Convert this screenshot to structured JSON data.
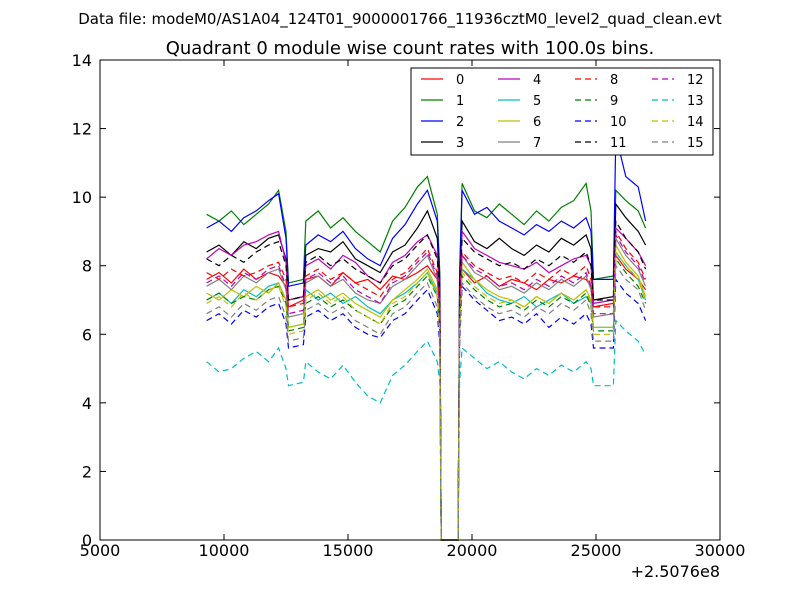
{
  "figure": {
    "suptitle": "Data file: modeM0/AS1A04_124T01_9000001766_11936cztM0_level2_quad_clean.evt"
  },
  "chart_data": {
    "type": "line",
    "title": "Quadrant 0 module wise count rates with 100.0s bins.",
    "xlabel": "",
    "ylabel": "",
    "x_offset_label": "+2.5076e8",
    "xlim": [
      5000,
      30000
    ],
    "ylim": [
      0,
      14
    ],
    "x_tick_labels": [
      "5000",
      "10000",
      "15000",
      "20000",
      "25000",
      "30000"
    ],
    "y_tick_labels": [
      "0",
      "2",
      "4",
      "6",
      "8",
      "10",
      "12",
      "14"
    ],
    "grid": false,
    "legend_position": "top-right",
    "legend_columns": 4,
    "gaps": [
      [
        12650,
        13200
      ],
      [
        18700,
        19500
      ],
      [
        24850,
        25700
      ]
    ],
    "x": [
      9300,
      9800,
      10300,
      10800,
      11300,
      11800,
      12200,
      12500,
      12600,
      13200,
      13300,
      13800,
      14300,
      14800,
      15300,
      15800,
      16300,
      16800,
      17300,
      17800,
      18200,
      18600,
      18700,
      19500,
      19600,
      20100,
      20600,
      21100,
      21600,
      22100,
      22600,
      23100,
      23600,
      24100,
      24600,
      24800,
      24900,
      25700,
      25800,
      26200,
      26700,
      27000
    ],
    "series": [
      {
        "name": "0",
        "color": "#ff0000",
        "dash": "solid",
        "values": [
          7.6,
          7.8,
          7.5,
          7.9,
          7.6,
          7.8,
          7.7,
          7.4,
          6.8,
          7.0,
          7.6,
          7.7,
          7.4,
          7.8,
          7.5,
          7.6,
          7.3,
          7.7,
          7.6,
          7.8,
          8.0,
          7.6,
          6.8,
          6.8,
          7.9,
          7.5,
          7.7,
          7.4,
          7.6,
          7.5,
          7.3,
          7.6,
          7.5,
          7.7,
          7.6,
          7.4,
          6.8,
          6.9,
          8.3,
          7.9,
          7.6,
          7.3
        ]
      },
      {
        "name": "1",
        "color": "#008000",
        "dash": "solid",
        "values": [
          9.5,
          9.3,
          9.6,
          9.2,
          9.5,
          9.8,
          10.2,
          9.0,
          7.5,
          7.6,
          9.3,
          9.6,
          9.1,
          9.4,
          9.0,
          8.7,
          8.4,
          9.3,
          9.7,
          10.3,
          10.6,
          9.5,
          7.8,
          7.8,
          10.4,
          9.6,
          9.4,
          9.8,
          9.5,
          9.2,
          9.6,
          9.3,
          9.7,
          9.9,
          10.4,
          9.6,
          7.6,
          7.7,
          10.2,
          9.9,
          9.6,
          9.1
        ]
      },
      {
        "name": "2",
        "color": "#0000ff",
        "dash": "solid",
        "values": [
          9.1,
          9.3,
          9.0,
          9.4,
          9.6,
          9.9,
          10.1,
          8.8,
          7.4,
          7.5,
          8.6,
          8.9,
          8.7,
          9.0,
          8.5,
          8.2,
          8.0,
          8.8,
          9.2,
          9.8,
          10.2,
          9.3,
          7.6,
          7.6,
          10.2,
          9.5,
          9.7,
          9.3,
          9.1,
          8.9,
          9.2,
          9.0,
          9.3,
          9.1,
          9.4,
          9.0,
          7.6,
          7.6,
          11.8,
          10.6,
          10.3,
          9.3
        ]
      },
      {
        "name": "3",
        "color": "#000000",
        "dash": "solid",
        "values": [
          8.4,
          8.6,
          8.3,
          8.7,
          8.5,
          8.8,
          8.9,
          8.2,
          7.0,
          7.1,
          8.3,
          8.5,
          8.4,
          8.7,
          8.2,
          8.0,
          7.8,
          8.4,
          8.6,
          9.1,
          9.6,
          8.8,
          7.2,
          7.2,
          9.3,
          8.7,
          8.5,
          8.8,
          8.5,
          8.3,
          8.6,
          8.4,
          8.8,
          8.6,
          8.9,
          8.5,
          7.0,
          7.1,
          9.8,
          9.4,
          9.0,
          8.6
        ]
      },
      {
        "name": "4",
        "color": "#bf00bf",
        "dash": "solid",
        "values": [
          8.2,
          8.5,
          8.3,
          8.6,
          8.7,
          8.9,
          9.0,
          8.1,
          7.0,
          7.1,
          8.0,
          8.2,
          7.9,
          8.3,
          8.1,
          7.7,
          7.5,
          8.1,
          8.3,
          8.7,
          8.9,
          8.3,
          7.0,
          7.0,
          9.0,
          8.5,
          8.3,
          8.1,
          8.0,
          7.9,
          8.1,
          7.8,
          8.0,
          8.2,
          8.3,
          8.0,
          6.9,
          7.0,
          9.1,
          8.8,
          8.4,
          8.0
        ]
      },
      {
        "name": "5",
        "color": "#00bfbf",
        "dash": "solid",
        "values": [
          7.0,
          7.2,
          6.9,
          7.3,
          7.1,
          7.4,
          7.5,
          7.0,
          6.2,
          6.3,
          7.3,
          7.0,
          7.2,
          6.9,
          7.1,
          6.8,
          6.6,
          7.0,
          7.2,
          7.5,
          7.8,
          7.2,
          6.3,
          6.3,
          7.9,
          7.6,
          7.2,
          7.0,
          6.9,
          7.1,
          6.8,
          7.0,
          7.2,
          6.9,
          7.1,
          6.9,
          6.2,
          6.2,
          8.4,
          8.0,
          7.6,
          7.0
        ]
      },
      {
        "name": "6",
        "color": "#bfbf00",
        "dash": "solid",
        "values": [
          7.2,
          7.0,
          7.3,
          7.1,
          7.4,
          7.2,
          7.5,
          7.0,
          6.2,
          6.3,
          7.1,
          7.3,
          7.0,
          7.2,
          6.9,
          6.7,
          6.5,
          7.0,
          7.3,
          7.6,
          7.9,
          7.3,
          6.3,
          6.3,
          8.1,
          7.6,
          7.3,
          7.1,
          7.0,
          6.8,
          7.1,
          6.9,
          7.2,
          7.0,
          7.3,
          7.0,
          6.2,
          6.2,
          8.6,
          8.1,
          7.7,
          7.1
        ]
      },
      {
        "name": "7",
        "color": "#808080",
        "dash": "solid",
        "values": [
          7.4,
          7.6,
          7.3,
          7.7,
          7.5,
          7.8,
          7.9,
          7.3,
          6.5,
          6.6,
          7.5,
          7.7,
          7.4,
          7.6,
          7.2,
          7.0,
          6.9,
          7.4,
          7.6,
          8.0,
          8.3,
          7.6,
          6.6,
          6.6,
          8.3,
          7.8,
          7.6,
          7.3,
          7.4,
          7.2,
          7.5,
          7.3,
          7.6,
          7.4,
          7.7,
          7.3,
          6.5,
          6.6,
          8.8,
          8.3,
          7.9,
          7.4
        ]
      },
      {
        "name": "8",
        "color": "#ff0000",
        "dash": "dashed",
        "values": [
          7.8,
          7.6,
          7.9,
          7.7,
          7.8,
          8.0,
          8.1,
          7.6,
          6.8,
          6.9,
          7.7,
          7.9,
          7.6,
          7.8,
          7.5,
          7.3,
          7.1,
          7.6,
          7.8,
          8.2,
          8.5,
          7.8,
          6.8,
          6.8,
          8.4,
          8.0,
          7.8,
          7.6,
          7.7,
          7.5,
          7.8,
          7.6,
          7.9,
          7.7,
          8.0,
          7.6,
          6.8,
          6.8,
          9.0,
          8.5,
          8.1,
          7.6
        ]
      },
      {
        "name": "9",
        "color": "#008000",
        "dash": "dashed",
        "values": [
          7.0,
          7.2,
          6.9,
          7.1,
          7.0,
          7.3,
          7.4,
          6.9,
          6.1,
          6.2,
          6.9,
          7.1,
          6.8,
          7.0,
          6.7,
          6.5,
          6.3,
          6.8,
          7.0,
          7.4,
          7.7,
          7.1,
          6.2,
          6.2,
          7.7,
          7.3,
          7.0,
          6.8,
          6.9,
          6.7,
          7.0,
          6.8,
          7.1,
          6.9,
          7.2,
          6.8,
          6.1,
          6.1,
          8.2,
          7.8,
          7.4,
          6.9
        ]
      },
      {
        "name": "10",
        "color": "#0000ff",
        "dash": "dashed",
        "values": [
          6.4,
          6.6,
          6.3,
          6.7,
          6.5,
          6.8,
          6.9,
          6.3,
          5.6,
          5.7,
          6.5,
          6.7,
          6.4,
          6.6,
          6.2,
          6.0,
          5.9,
          6.4,
          6.6,
          7.0,
          7.3,
          6.6,
          5.7,
          5.7,
          7.4,
          7.0,
          6.7,
          6.4,
          6.5,
          6.3,
          6.6,
          6.2,
          6.5,
          6.3,
          6.6,
          6.3,
          5.6,
          5.6,
          7.6,
          7.2,
          6.9,
          6.4
        ]
      },
      {
        "name": "11",
        "color": "#000000",
        "dash": "dashed",
        "values": [
          8.2,
          8.0,
          8.3,
          8.1,
          8.4,
          8.6,
          8.7,
          8.0,
          7.0,
          7.1,
          8.1,
          8.3,
          8.0,
          8.2,
          7.9,
          7.7,
          7.5,
          8.0,
          8.2,
          8.6,
          8.9,
          8.2,
          7.1,
          7.1,
          8.8,
          8.4,
          8.2,
          8.0,
          8.1,
          7.9,
          8.2,
          8.0,
          8.3,
          8.1,
          8.4,
          8.0,
          7.0,
          7.0,
          9.3,
          8.8,
          8.4,
          7.9
        ]
      },
      {
        "name": "12",
        "color": "#bf00bf",
        "dash": "dashed",
        "values": [
          7.5,
          7.7,
          7.4,
          7.8,
          7.6,
          7.9,
          8.0,
          7.4,
          6.6,
          6.7,
          7.6,
          7.8,
          7.5,
          7.7,
          7.3,
          7.1,
          6.9,
          7.5,
          7.7,
          8.1,
          8.4,
          7.7,
          6.7,
          6.7,
          8.3,
          7.9,
          7.7,
          7.4,
          7.5,
          7.3,
          7.6,
          7.4,
          7.7,
          7.5,
          7.8,
          7.4,
          6.6,
          6.6,
          8.9,
          8.4,
          8.0,
          7.5
        ]
      },
      {
        "name": "13",
        "color": "#00bfbf",
        "dash": "dashed",
        "values": [
          5.2,
          4.9,
          5.0,
          5.3,
          5.5,
          5.2,
          5.6,
          5.0,
          4.5,
          4.6,
          5.2,
          4.9,
          4.7,
          5.1,
          4.6,
          4.2,
          4.0,
          4.8,
          5.1,
          5.5,
          5.8,
          5.2,
          4.6,
          4.6,
          5.6,
          5.3,
          5.0,
          5.2,
          4.9,
          4.7,
          5.0,
          4.8,
          5.1,
          4.9,
          5.2,
          5.0,
          4.5,
          4.5,
          6.4,
          6.1,
          5.8,
          5.4
        ]
      },
      {
        "name": "14",
        "color": "#bfbf00",
        "dash": "dashed",
        "values": [
          6.9,
          7.1,
          6.8,
          7.2,
          7.0,
          7.3,
          7.4,
          6.8,
          6.0,
          6.1,
          7.0,
          7.2,
          6.9,
          7.1,
          6.7,
          6.5,
          6.3,
          6.9,
          7.1,
          7.5,
          7.8,
          7.1,
          6.1,
          6.1,
          7.8,
          7.4,
          7.1,
          6.9,
          7.0,
          6.8,
          7.1,
          6.9,
          7.2,
          7.0,
          7.3,
          6.9,
          6.0,
          6.0,
          8.4,
          8.0,
          7.6,
          7.0
        ]
      },
      {
        "name": "15",
        "color": "#808080",
        "dash": "dashed",
        "values": [
          6.6,
          6.8,
          6.5,
          6.9,
          6.7,
          7.0,
          7.1,
          6.5,
          5.8,
          5.9,
          6.7,
          6.9,
          6.6,
          6.8,
          6.4,
          6.2,
          6.0,
          6.6,
          6.8,
          7.2,
          7.5,
          6.8,
          5.9,
          5.9,
          7.5,
          7.1,
          6.8,
          6.6,
          6.7,
          6.5,
          6.8,
          6.6,
          6.9,
          6.7,
          7.0,
          6.6,
          5.8,
          5.8,
          8.0,
          7.6,
          7.3,
          6.7
        ]
      }
    ]
  }
}
